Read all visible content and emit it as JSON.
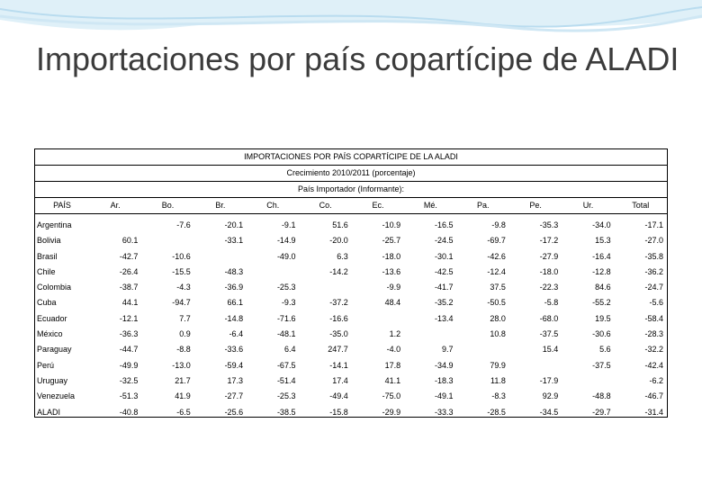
{
  "slide": {
    "title": "Importaciones por país copartícipe de ALADI"
  },
  "table": {
    "title": "IMPORTACIONES POR PAÍS COPARTÍCIPE DE LA ALADI",
    "subtitle": "Crecimiento 2010/2011 (porcentaje)",
    "group_header": "País Importador (Informante):",
    "columns": [
      "PAÍS",
      "Ar.",
      "Bo.",
      "Br.",
      "Ch.",
      "Co.",
      "Ec.",
      "Mé.",
      "Pa.",
      "Pe.",
      "Ur.",
      "Total"
    ],
    "rows": [
      {
        "country": "Argentina",
        "values": [
          null,
          "-7.6",
          "-20.1",
          "-9.1",
          "51.6",
          "-10.9",
          "-16.5",
          "-9.8",
          "-35.3",
          "-34.0",
          "-17.1"
        ]
      },
      {
        "country": "Bolivia",
        "values": [
          "60.1",
          null,
          "-33.1",
          "-14.9",
          "-20.0",
          "-25.7",
          "-24.5",
          "-69.7",
          "-17.2",
          "15.3",
          "-27.0"
        ]
      },
      {
        "country": "Brasil",
        "values": [
          "-42.7",
          "-10.6",
          null,
          "-49.0",
          "6.3",
          "-18.0",
          "-30.1",
          "-42.6",
          "-27.9",
          "-16.4",
          "-35.8"
        ]
      },
      {
        "country": "Chile",
        "values": [
          "-26.4",
          "-15.5",
          "-48.3",
          null,
          "-14.2",
          "-13.6",
          "-42.5",
          "-12.4",
          "-18.0",
          "-12.8",
          "-36.2"
        ]
      },
      {
        "country": "Colombia",
        "values": [
          "-38.7",
          "-4.3",
          "-36.9",
          "-25.3",
          null,
          "-9.9",
          "-41.7",
          "37.5",
          "-22.3",
          "84.6",
          "-24.7"
        ]
      },
      {
        "country": "Cuba",
        "values": [
          "44.1",
          "-94.7",
          "66.1",
          "-9.3",
          "-37.2",
          "48.4",
          "-35.2",
          "-50.5",
          "-5.8",
          "-55.2",
          "-5.6"
        ]
      },
      {
        "country": "Ecuador",
        "values": [
          "-12.1",
          "7.7",
          "-14.8",
          "-71.6",
          "-16.6",
          null,
          "-13.4",
          "28.0",
          "-68.0",
          "19.5",
          "-58.4"
        ]
      },
      {
        "country": "México",
        "values": [
          "-36.3",
          "0.9",
          "-6.4",
          "-48.1",
          "-35.0",
          "1.2",
          null,
          "10.8",
          "-37.5",
          "-30.6",
          "-28.3"
        ]
      },
      {
        "country": "Paraguay",
        "values": [
          "-44.7",
          "-8.8",
          "-33.6",
          "6.4",
          "247.7",
          "-4.0",
          "9.7",
          null,
          "15.4",
          "5.6",
          "-32.2"
        ]
      },
      {
        "country": "Perú",
        "values": [
          "-49.9",
          "-13.0",
          "-59.4",
          "-67.5",
          "-14.1",
          "17.8",
          "-34.9",
          "79.9",
          null,
          "-37.5",
          "-42.4"
        ]
      },
      {
        "country": "Uruguay",
        "values": [
          "-32.5",
          "21.7",
          "17.3",
          "-51.4",
          "17.4",
          "41.1",
          "-18.3",
          "11.8",
          "-17.9",
          null,
          "-6.2"
        ]
      },
      {
        "country": "Venezuela",
        "values": [
          "-51.3",
          "41.9",
          "-27.7",
          "-25.3",
          "-49.4",
          "-75.0",
          "-49.1",
          "-8.3",
          "92.9",
          "-48.8",
          "-46.7"
        ]
      },
      {
        "country": "ALADI",
        "values": [
          "-40.8",
          "-6.5",
          "-25.6",
          "-38.5",
          "-15.8",
          "-29.9",
          "-33.3",
          "-28.5",
          "-34.5",
          "-29.7",
          "-31.4"
        ]
      }
    ]
  }
}
